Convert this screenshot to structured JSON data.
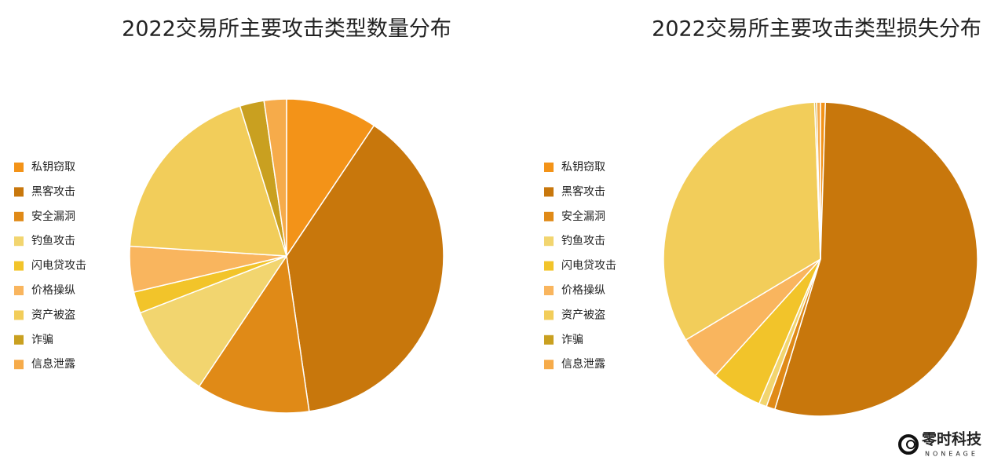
{
  "chart_data": [
    {
      "type": "pie",
      "title": "2022交易所主要攻击类型数量分布",
      "categories": [
        "私钥窃取",
        "黑客攻击",
        "安全漏洞",
        "钓鱼攻击",
        "闪电贷攻击",
        "价格操纵",
        "资产被盗",
        "诈骗",
        "信息泄露"
      ],
      "values": [
        9.4,
        38.3,
        11.7,
        9.7,
        2.2,
        4.7,
        19.2,
        2.5,
        2.3
      ],
      "colors": [
        "#f39318",
        "#c8770c",
        "#e08a17",
        "#f2d56f",
        "#f2c42a",
        "#f9b55e",
        "#f2cd5a",
        "#c9a020",
        "#f6ab4a"
      ],
      "legend": "left"
    },
    {
      "type": "pie",
      "title": "2022交易所主要攻击类型损失分布",
      "categories": [
        "私钥窃取",
        "黑客攻击",
        "安全漏洞",
        "钓鱼攻击",
        "闪电贷攻击",
        "价格操纵",
        "资产被盗",
        "诈骗",
        "信息泄露"
      ],
      "values": [
        0.5,
        54.2,
        0.9,
        0.8,
        5.3,
        4.7,
        33.0,
        0.2,
        0.4
      ],
      "colors": [
        "#f39318",
        "#c8770c",
        "#e08a17",
        "#f2d56f",
        "#f2c42a",
        "#f9b55e",
        "#f2cd5a",
        "#c9a020",
        "#f6ab4a"
      ],
      "legend": "left"
    }
  ],
  "logo": {
    "name": "零时科技",
    "sub": "NONEAGE"
  }
}
